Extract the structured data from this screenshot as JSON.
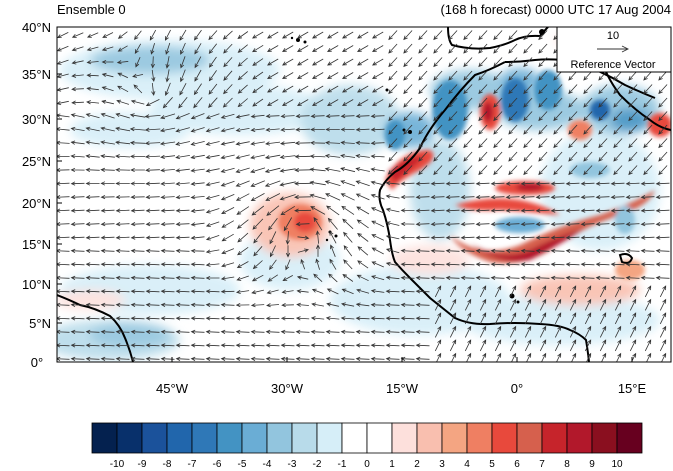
{
  "header": {
    "left_title": "Ensemble 0",
    "right_title": "(168 h forecast) 0000 UTC 17 Aug 2004"
  },
  "axes": {
    "lat_ticks": [
      "40°N",
      "35°N",
      "30°N",
      "25°N",
      "20°N",
      "15°N",
      "10°N",
      "5°N",
      "0°"
    ],
    "lon_ticks": [
      "45°W",
      "30°W",
      "15°W",
      "0°",
      "15°E"
    ]
  },
  "reference_vector": {
    "magnitude": "10",
    "label": "Reference Vector"
  },
  "colorbar": {
    "labels": [
      "-10",
      "-9",
      "-8",
      "-7",
      "-6",
      "-5",
      "-4",
      "-3",
      "-2",
      "-1",
      "0",
      "1",
      "2",
      "3",
      "4",
      "5",
      "6",
      "7",
      "8",
      "9",
      "10"
    ],
    "colors": [
      "#04214f",
      "#08306b",
      "#1b529b",
      "#2166ac",
      "#2f78b7",
      "#4393c3",
      "#6aadd5",
      "#92c5de",
      "#b8dbea",
      "#d6eef8",
      "#ffffff",
      "#ffffff",
      "#fde0dc",
      "#f9bfaf",
      "#f4a582",
      "#ef7f62",
      "#e8493c",
      "#d6604d",
      "#c6242b",
      "#b2182b",
      "#8a0f1f",
      "#67001f"
    ]
  },
  "colors": {
    "land_outline": "#000000",
    "frame": "#000000"
  }
}
